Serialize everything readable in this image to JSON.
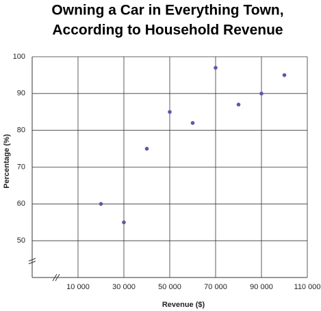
{
  "chart_data": {
    "type": "scatter",
    "title": [
      "Owning a Car in Everything Town,",
      "According to Household Revenue"
    ],
    "x_label": "Revenue ($)",
    "y_label": "Percentage (%)",
    "x": [
      20000,
      30000,
      40000,
      50000,
      60000,
      70000,
      80000,
      90000,
      100000
    ],
    "values": [
      60,
      55,
      75,
      85,
      82,
      97,
      87,
      90,
      95
    ],
    "color": "#5b5aa8",
    "xlim": [
      -10000,
      110000
    ],
    "xticks": [
      {
        "value": 10000,
        "label": "10 000"
      },
      {
        "value": 30000,
        "label": "30 000"
      },
      {
        "value": 50000,
        "label": "50 000"
      },
      {
        "value": 70000,
        "label": "70 000"
      },
      {
        "value": 90000,
        "label": "90 000"
      },
      {
        "value": 110000,
        "label": "110 000"
      }
    ],
    "ylim": [
      40,
      100
    ],
    "yticks": [
      50,
      60,
      70,
      80,
      90,
      100
    ],
    "grid": true
  }
}
